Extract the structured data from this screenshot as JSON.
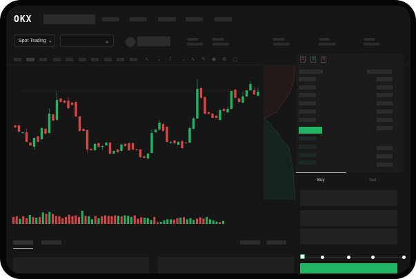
{
  "header": {
    "logo": "OKX"
  },
  "market_selector": {
    "label": "Spot Trading",
    "chevron": "chevron-down-icon"
  },
  "pair_selector": {
    "chevron": "chevron-down-icon"
  },
  "order_form": {
    "buy_tab": "Buy",
    "sell_tab": "Sell",
    "leverage_slider_position": 0
  },
  "colors": {
    "up": "#22b363",
    "down": "#d84545",
    "background": "#161616",
    "placeholder": "#2b2b2b"
  },
  "chart_data": {
    "type": "candlestick",
    "candles_ohlc": [
      [
        68,
        69,
        64,
        65
      ],
      [
        68,
        69,
        58,
        59
      ],
      [
        57,
        58,
        56,
        58
      ],
      [
        58,
        63,
        43,
        44
      ],
      [
        43,
        44,
        38,
        39
      ],
      [
        37,
        50,
        33,
        50
      ],
      [
        52,
        53,
        43,
        44
      ],
      [
        48,
        65,
        47,
        64
      ],
      [
        63,
        64,
        55,
        56
      ],
      [
        57,
        93,
        56,
        85
      ],
      [
        84,
        85,
        74,
        75
      ],
      [
        76,
        118,
        75,
        105
      ],
      [
        107,
        108,
        101,
        102
      ],
      [
        104,
        105,
        100,
        101
      ],
      [
        104,
        109,
        92,
        93
      ],
      [
        101,
        102,
        97,
        98
      ],
      [
        102,
        103,
        80,
        81
      ],
      [
        81,
        82,
        59,
        60
      ],
      [
        63,
        64,
        59,
        60
      ],
      [
        61,
        62,
        28,
        33
      ],
      [
        34,
        35,
        31,
        32
      ],
      [
        32,
        42,
        31,
        41
      ],
      [
        42,
        43,
        36,
        37
      ],
      [
        37,
        39,
        32,
        38
      ],
      [
        39,
        44,
        38,
        43
      ],
      [
        43,
        44,
        26,
        27
      ],
      [
        27,
        32,
        26,
        31
      ],
      [
        33,
        34,
        28,
        29
      ],
      [
        31,
        41,
        30,
        40
      ],
      [
        41,
        42,
        37,
        38
      ],
      [
        42,
        43,
        31,
        32
      ],
      [
        42,
        43,
        32,
        33
      ],
      [
        33,
        34,
        31,
        32
      ],
      [
        33,
        34,
        21,
        22
      ],
      [
        23,
        24,
        20,
        21
      ],
      [
        20,
        28,
        19,
        27
      ],
      [
        28,
        62,
        27,
        57
      ],
      [
        58,
        62,
        57,
        62
      ],
      [
        62,
        76,
        61,
        72
      ],
      [
        70,
        71,
        59,
        60
      ],
      [
        66,
        67,
        43,
        44
      ],
      [
        43,
        45,
        41,
        44
      ],
      [
        46,
        47,
        41,
        42
      ],
      [
        40,
        45,
        39,
        44
      ],
      [
        45,
        47,
        34,
        35
      ],
      [
        43,
        44,
        41,
        42
      ],
      [
        43,
        66,
        42,
        64
      ],
      [
        63,
        80,
        62,
        78
      ],
      [
        78,
        135,
        77,
        121
      ],
      [
        122,
        124,
        107,
        108
      ],
      [
        109,
        110,
        84,
        85
      ],
      [
        87,
        88,
        84,
        85
      ],
      [
        85,
        86,
        78,
        79
      ],
      [
        82,
        83,
        78,
        79
      ],
      [
        76,
        92,
        75,
        90
      ],
      [
        92,
        93,
        88,
        89
      ],
      [
        87,
        96,
        86,
        92
      ],
      [
        92,
        118,
        91,
        118
      ],
      [
        120,
        121,
        107,
        108
      ],
      [
        107,
        108,
        101,
        102
      ],
      [
        101,
        117,
        100,
        110
      ],
      [
        110,
        119,
        109,
        119
      ],
      [
        119,
        132,
        118,
        128
      ],
      [
        119,
        124,
        112,
        113
      ],
      [
        111,
        123,
        110,
        117
      ]
    ],
    "volume": [
      30,
      33,
      22,
      33,
      25,
      39,
      30,
      27,
      30,
      50,
      43,
      52,
      43,
      35,
      33,
      25,
      30,
      40,
      33,
      37,
      30,
      57,
      35,
      33,
      20,
      35,
      25,
      33,
      37,
      35,
      33,
      37,
      35,
      33,
      37,
      35,
      30,
      37,
      23,
      29,
      27,
      25,
      17,
      30,
      7,
      9,
      15,
      20,
      20,
      19,
      25,
      27,
      29,
      20,
      25,
      17,
      23,
      29,
      23,
      30,
      20,
      15,
      10,
      8,
      13
    ],
    "volume_up": [
      0,
      0,
      1,
      0,
      0,
      1,
      0,
      1,
      0,
      1,
      0,
      1,
      0,
      0,
      0,
      0,
      0,
      0,
      0,
      0,
      0,
      1,
      0,
      1,
      1,
      0,
      1,
      0,
      0,
      0,
      0,
      0,
      1,
      0,
      1,
      1,
      1,
      0,
      0,
      0,
      1,
      1,
      1,
      0,
      0,
      1,
      1,
      1,
      1,
      0,
      0,
      1,
      0,
      1,
      1,
      1,
      0,
      0,
      0,
      1,
      1,
      1,
      1,
      0,
      1
    ]
  }
}
